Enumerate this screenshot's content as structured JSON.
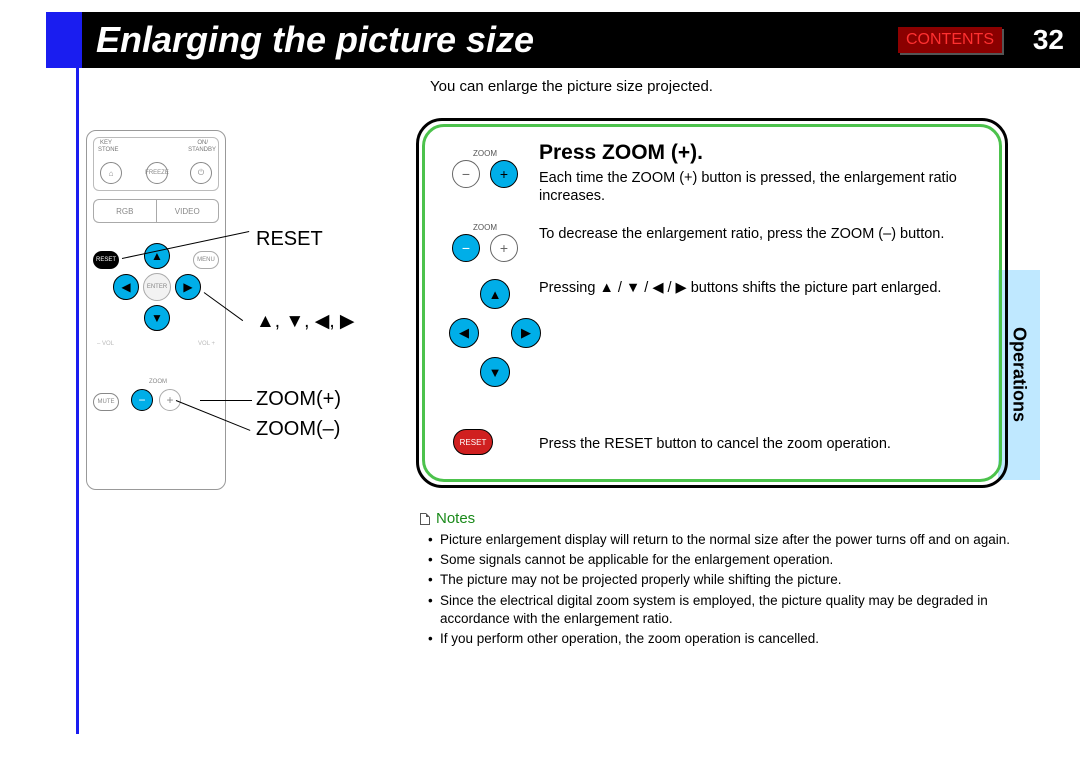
{
  "header": {
    "title": "Enlarging the picture size",
    "contents_label": "CONTENTS",
    "page_number": "32"
  },
  "side_tab": "Operations",
  "intro": "You can enlarge the picture size projected.",
  "remote": {
    "top_labels": {
      "key": "KEY",
      "stone": "STONE",
      "on": "ON/",
      "standby": "STANDBY"
    },
    "freeze": "FREEZE",
    "rgb": "RGB",
    "video": "VIDEO",
    "reset": "RESET",
    "menu": "MENU",
    "enter": "ENTER",
    "mute": "MUTE",
    "vol_minus": "– VOL",
    "vol_plus": "VOL +",
    "zoom": "ZOOM",
    "leaders": {
      "reset": "RESET",
      "arrows": "▲, ▼, ◀, ▶",
      "zoom_plus": "ZOOM(+)",
      "zoom_minus": "ZOOM(–)"
    }
  },
  "panel": {
    "title": "Press ZOOM (+).",
    "line1": "Each time the ZOOM (+) button is pressed, the enlargement ratio increases.",
    "line2": "To decrease the enlargement ratio, press the ZOOM (–) button.",
    "line3": "Pressing ▲ / ▼ / ◀ / ▶ buttons shifts the picture part enlarged.",
    "line4": "Press the RESET button to cancel the zoom operation.",
    "zoom_label": "ZOOM",
    "reset": "RESET"
  },
  "notes": {
    "heading": "Notes",
    "items": [
      "Picture enlargement display will return to the normal size after the power turns off and on again.",
      "Some signals cannot be applicable for the enlargement operation.",
      "The picture may not be projected properly while shifting the picture.",
      "Since the electrical digital zoom system is employed, the picture quality may be degraded in accordance with the enlargement ratio.",
      "If you perform other operation, the zoom operation is cancelled."
    ]
  }
}
